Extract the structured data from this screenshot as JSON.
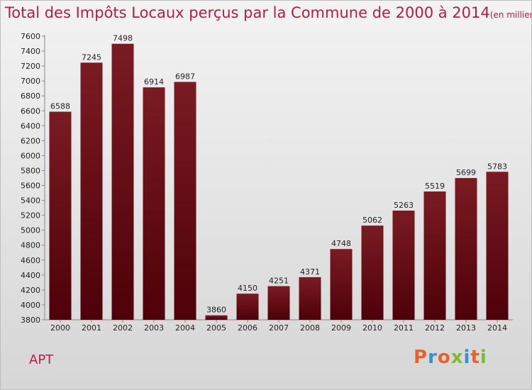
{
  "chart_data": {
    "type": "bar",
    "title": "Total des Impôts Locaux perçus par la Commune de 2000 à 2014",
    "subtitle": "(en milliers d'€)",
    "categories": [
      "2000",
      "2001",
      "2002",
      "2003",
      "2004",
      "2005",
      "2006",
      "2007",
      "2008",
      "2009",
      "2010",
      "2011",
      "2012",
      "2013",
      "2014"
    ],
    "values": [
      6588,
      7245,
      7498,
      6914,
      6987,
      3860,
      4150,
      4251,
      4371,
      4748,
      5062,
      5263,
      5519,
      5699,
      5783
    ],
    "xlabel": "",
    "ylabel": "",
    "ylim": [
      3800,
      7600
    ],
    "yticks": [
      3800,
      4000,
      4200,
      4400,
      4600,
      4800,
      5000,
      5200,
      5400,
      5600,
      5800,
      6000,
      6200,
      6400,
      6600,
      6800,
      7000,
      7200,
      7400,
      7600
    ],
    "grid": false,
    "bar_color": "#7a1b22",
    "bar_color_dark": "#4e0008"
  },
  "commune": "APT",
  "brand": {
    "text": "Proxiti",
    "letter_colors": [
      "#e8632b",
      "#3a8fd1",
      "#e8632b",
      "#7cbd30",
      "#3a8fd1",
      "#e8632b",
      "#7cbd30"
    ]
  },
  "title_color": "#b71d42"
}
